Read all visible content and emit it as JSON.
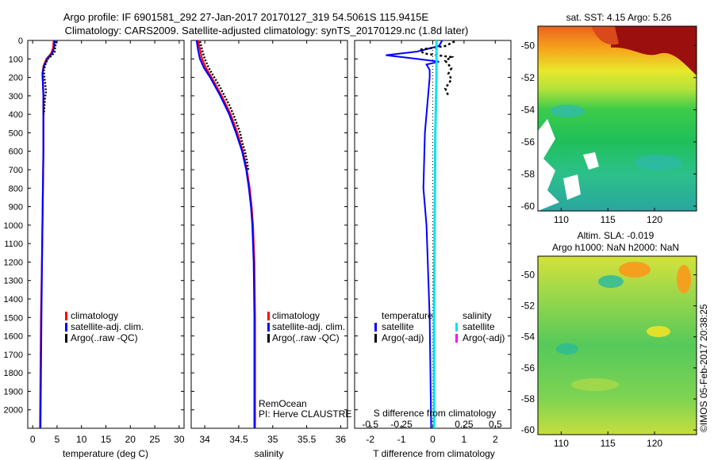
{
  "title": {
    "line1": "Argo profile: IF 6901581_292 27-Jan-2017 20170127_319 54.5061S 115.9415E",
    "line2": "Climatology: CARS2009. Satellite-adjusted climatology: synTS_20170129.nc (1.8d later)"
  },
  "colors": {
    "climatology": "#ff0000",
    "satellite": "#0000ff",
    "argo": "#000000",
    "sal_satellite": "#00e5ee",
    "sal_argo": "#ff00ff"
  },
  "chart_data": [
    {
      "id": "temperature",
      "type": "line",
      "xlabel": "temperature (deg C)",
      "xlim": [
        -1,
        31
      ],
      "xticks": [
        "0",
        "5",
        "10",
        "15",
        "20",
        "25",
        "30"
      ],
      "xtick_values": [
        0,
        5,
        10,
        15,
        20,
        25,
        30
      ],
      "ylim": [
        2100,
        0
      ],
      "yticks": [
        "0",
        "100",
        "200",
        "300",
        "400",
        "500",
        "600",
        "700",
        "800",
        "900",
        "1000",
        "1100",
        "1200",
        "1300",
        "1400",
        "1500",
        "1600",
        "1700",
        "1800",
        "1900",
        "2000"
      ],
      "legend": [
        "climatology",
        "satellite-adj. clim.",
        "Argo(..raw -QC)"
      ],
      "series": [
        {
          "name": "climatology",
          "depth": [
            0,
            40,
            70,
            100,
            140,
            180,
            230,
            300,
            400,
            600,
            800,
            1000,
            1200,
            1500,
            1800,
            2100
          ],
          "values": [
            4.3,
            4.2,
            3.8,
            2.8,
            2.2,
            2.0,
            2.1,
            2.2,
            2.2,
            2.2,
            2.1,
            2.0,
            1.9,
            1.7,
            1.6,
            1.5
          ]
        },
        {
          "name": "satellite-adj. clim.",
          "depth": [
            0,
            40,
            70,
            100,
            140,
            180,
            230,
            300,
            400,
            600,
            800,
            1000,
            1200,
            1500,
            1800,
            2100
          ],
          "values": [
            4.5,
            4.4,
            4.0,
            3.0,
            2.3,
            2.0,
            2.1,
            2.2,
            2.2,
            2.2,
            2.1,
            2.0,
            1.9,
            1.8,
            1.7,
            1.6
          ]
        },
        {
          "name": "Argo(..raw -QC)",
          "depth": [
            5,
            20,
            40,
            60,
            80,
            100,
            130,
            160,
            200,
            240,
            280,
            320,
            360,
            400
          ],
          "values": [
            4.8,
            4.7,
            4.6,
            4.5,
            4.0,
            3.1,
            2.6,
            2.3,
            2.4,
            2.6,
            2.7,
            2.5,
            2.4,
            2.3
          ]
        }
      ]
    },
    {
      "id": "salinity",
      "type": "line",
      "xlabel": "salinity",
      "xlim": [
        33.8,
        36.1
      ],
      "xticks": [
        "34",
        "34.5",
        "35",
        "35.5",
        "36"
      ],
      "xtick_values": [
        34,
        34.5,
        35,
        35.5,
        36
      ],
      "ylim": [
        2100,
        0
      ],
      "legend": [
        "climatology",
        "satellite-adj. clim.",
        "Argo(..raw -QC)"
      ],
      "annotations": [
        "RemOcean",
        "PI: Herve CLAUSTRE"
      ],
      "series": [
        {
          "name": "climatology",
          "depth": [
            0,
            50,
            100,
            150,
            200,
            300,
            400,
            500,
            600,
            700,
            800,
            900,
            1000,
            1200,
            1500,
            2100
          ],
          "values": [
            33.9,
            33.93,
            33.96,
            34.02,
            34.1,
            34.25,
            34.38,
            34.48,
            34.56,
            34.62,
            34.66,
            34.69,
            34.71,
            34.73,
            34.74,
            34.74
          ]
        },
        {
          "name": "satellite-adj. clim.",
          "depth": [
            0,
            50,
            100,
            150,
            200,
            300,
            400,
            500,
            600,
            700,
            800,
            900,
            1000,
            1200,
            1500,
            2100
          ],
          "values": [
            33.88,
            33.9,
            33.93,
            33.99,
            34.08,
            34.23,
            34.36,
            34.46,
            34.55,
            34.61,
            34.65,
            34.68,
            34.7,
            34.72,
            34.73,
            34.73
          ]
        },
        {
          "name": "Argo(..raw -QC)",
          "depth": [
            5,
            50,
            100,
            150,
            200,
            250,
            300,
            350,
            400,
            450,
            500,
            550,
            600,
            650,
            700
          ],
          "values": [
            33.93,
            33.96,
            34.0,
            34.06,
            34.14,
            34.22,
            34.29,
            34.36,
            34.42,
            34.47,
            34.52,
            34.55,
            34.59,
            34.62,
            34.64
          ]
        }
      ]
    },
    {
      "id": "difference",
      "type": "line",
      "xlabel": "T difference from climatology",
      "xlabel_top": "S difference from climatology",
      "xlim": [
        -2.5,
        2.5
      ],
      "xticks": [
        "-2",
        "-1",
        "0",
        "1",
        "2"
      ],
      "xtick_values": [
        -2,
        -1,
        0,
        1,
        2
      ],
      "xticks_top": [
        "-0.5",
        "-0.25",
        "0",
        "0.25",
        "0.5"
      ],
      "xtick_top_values": [
        -0.5,
        -0.25,
        0,
        0.25,
        0.5
      ],
      "ylim": [
        2100,
        0
      ],
      "legend_temperature": {
        "header": "temperature",
        "items": [
          "satellite",
          "Argo(-adj)"
        ]
      },
      "legend_salinity": {
        "header": "salinity",
        "items": [
          "satellite",
          "Argo(-adj)"
        ]
      },
      "series": [
        {
          "name": "T satellite",
          "depth": [
            0,
            30,
            60,
            80,
            100,
            115,
            130,
            160,
            200,
            300,
            500,
            800,
            1000,
            1500,
            2100
          ],
          "values": [
            0.3,
            0.2,
            -0.5,
            -1.5,
            -0.5,
            0.2,
            -0.2,
            -0.1,
            -0.1,
            -0.15,
            -0.25,
            -0.3,
            -0.2,
            -0.1,
            -0.05
          ]
        },
        {
          "name": "T Argo(-adj)",
          "depth": [
            5,
            30,
            50,
            70,
            90,
            110,
            130,
            150,
            180,
            210,
            260,
            300
          ],
          "values": [
            0.7,
            0.4,
            -0.4,
            -0.3,
            0.6,
            0.4,
            0.5,
            0.6,
            0.5,
            0.6,
            0.4,
            0.5
          ]
        },
        {
          "name": "S satellite",
          "depth": [
            0,
            200,
            500,
            1000,
            1500,
            2100
          ],
          "values": [
            0.03,
            0.03,
            0.02,
            0.015,
            0.01,
            0.01
          ]
        }
      ]
    },
    {
      "id": "sst_map",
      "type": "heatmap",
      "title": "sat. SST: 4.15 Argo: 5.26",
      "xticks": [
        "110",
        "115",
        "120"
      ],
      "xtick_values": [
        110,
        115,
        120
      ],
      "yticks": [
        "-50",
        "-52",
        "-54",
        "-56",
        "-58",
        "-60"
      ],
      "ytick_values": [
        -50,
        -52,
        -54,
        -56,
        -58,
        -60
      ],
      "xlim": [
        107.5,
        124.5
      ],
      "ylim": [
        -60.3,
        -48.8
      ]
    },
    {
      "id": "sla_map",
      "type": "heatmap",
      "title_line1": "Altim. SLA: -0.019",
      "title_line2": "Argo h1000: NaN h2000: NaN",
      "xticks": [
        "110",
        "115",
        "120"
      ],
      "xtick_values": [
        110,
        115,
        120
      ],
      "yticks": [
        "-50",
        "-52",
        "-54",
        "-56",
        "-58",
        "-60"
      ],
      "ytick_values": [
        -50,
        -52,
        -54,
        -56,
        -58,
        -60
      ],
      "xlim": [
        107.5,
        124.5
      ],
      "ylim": [
        -60.3,
        -48.8
      ]
    }
  ],
  "credit": "©IMOS 05-Feb-2017 20:38:25"
}
